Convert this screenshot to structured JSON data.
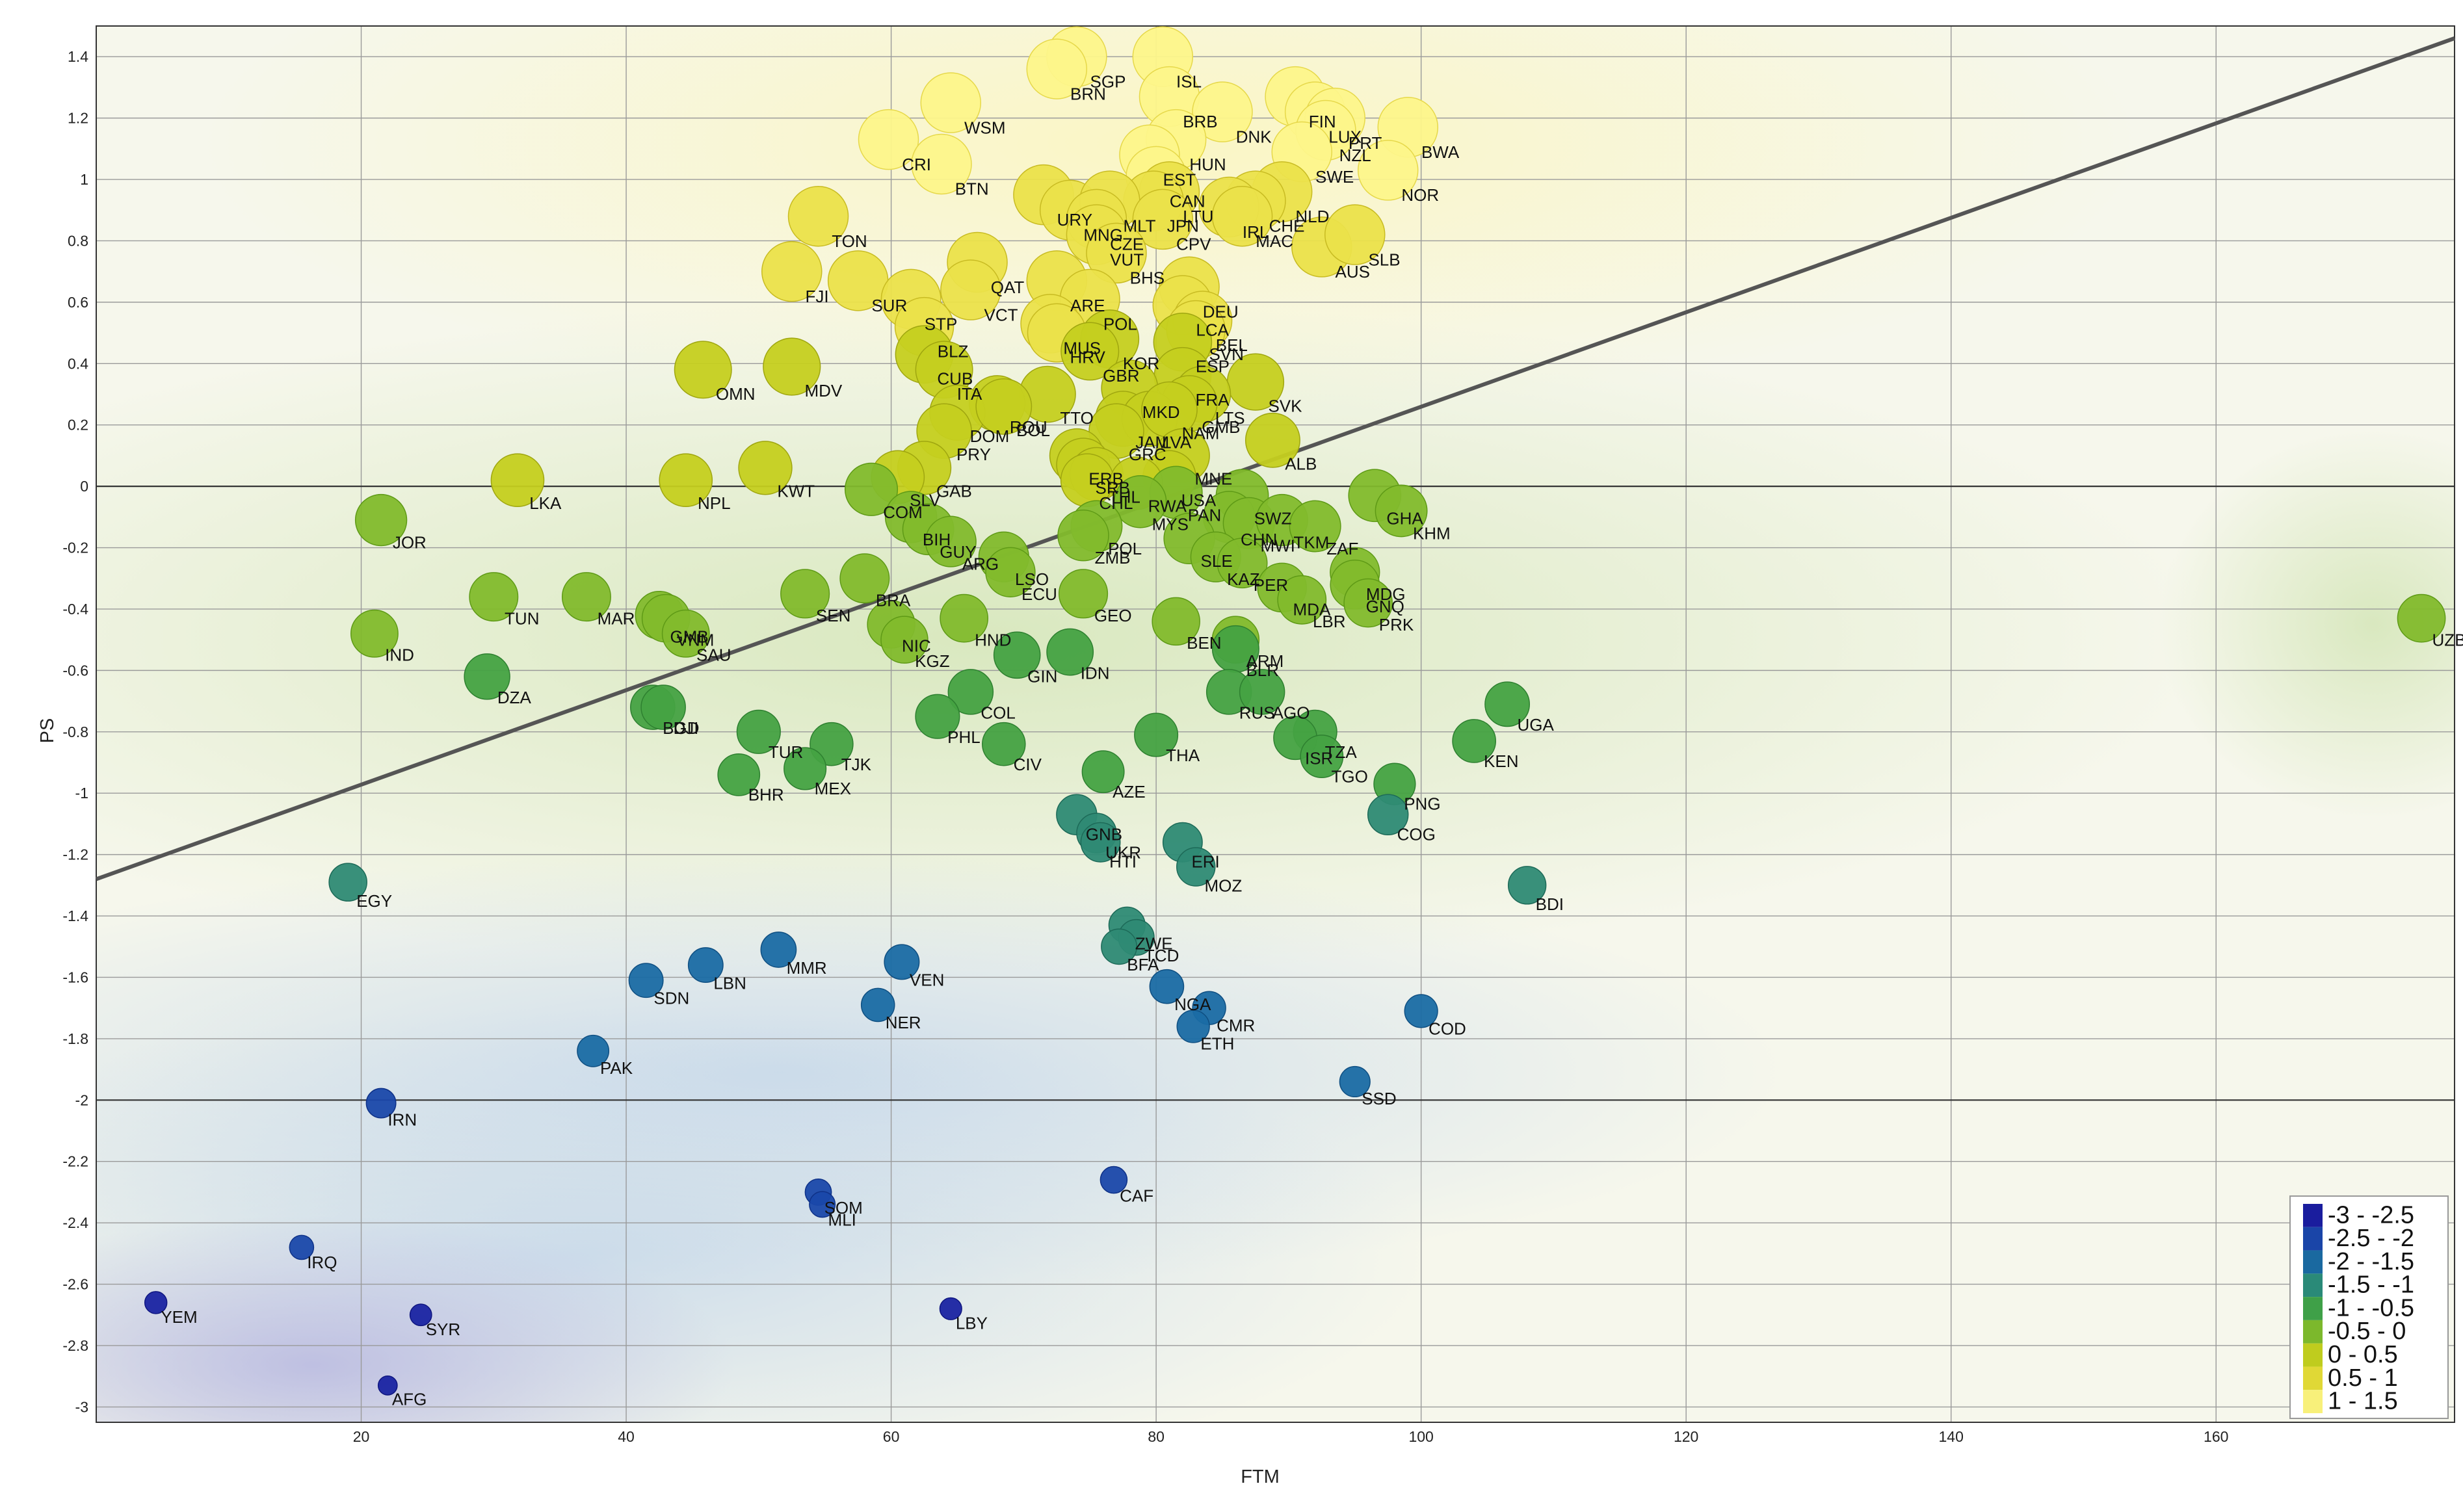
{
  "chart_data": {
    "type": "scatter",
    "title": "",
    "xlabel": "FTM",
    "ylabel": "PS",
    "xlim": [
      0,
      178
    ],
    "ylim": [
      -3.05,
      1.5
    ],
    "xticks": [
      20,
      40,
      60,
      80,
      100,
      120,
      140,
      160
    ],
    "yticks": [
      1.4,
      1.2,
      1,
      0.8,
      0.6,
      0.4,
      0.2,
      0,
      -0.2,
      -0.4,
      -0.6,
      -0.8,
      -1,
      -1.2,
      -1.4,
      -1.6,
      -1.8,
      -2,
      -2.2,
      -2.4,
      -2.6,
      -2.8,
      -3
    ],
    "grid": true,
    "trend_line": {
      "x": [
        0,
        178
      ],
      "y": [
        -1.28,
        1.46
      ]
    },
    "legend": {
      "placement": "bottom-right",
      "entries": [
        {
          "label": "-3 - -2.5",
          "color": "#1a1d9e"
        },
        {
          "label": "-2.5 - -2",
          "color": "#1a45a8"
        },
        {
          "label": "-2 - -1.5",
          "color": "#1a69a0"
        },
        {
          "label": "-1.5 - -1",
          "color": "#2a8a78"
        },
        {
          "label": "-1 - -0.5",
          "color": "#3fa048"
        },
        {
          "label": "-0.5 - 0",
          "color": "#7cb82c"
        },
        {
          "label": "0 - 0.5",
          "color": "#bfcc1e"
        },
        {
          "label": "0.5 - 1",
          "color": "#e0d836"
        },
        {
          "label": "1 - 1.5",
          "color": "#f8f07a"
        }
      ]
    },
    "points": [
      {
        "label": "SGP",
        "x": 74,
        "y": 1.4
      },
      {
        "label": "BRN",
        "x": 72.5,
        "y": 1.36
      },
      {
        "label": "ISL",
        "x": 80.5,
        "y": 1.4
      },
      {
        "label": "WSM",
        "x": 64.5,
        "y": 1.25
      },
      {
        "label": "CRI",
        "x": 59.8,
        "y": 1.13
      },
      {
        "label": "BTN",
        "x": 63.8,
        "y": 1.05
      },
      {
        "label": "BRB",
        "x": 81,
        "y": 1.27
      },
      {
        "label": "DNK",
        "x": 85,
        "y": 1.22
      },
      {
        "label": "FIN",
        "x": 90.5,
        "y": 1.27
      },
      {
        "label": "LUX",
        "x": 92,
        "y": 1.22
      },
      {
        "label": "PRT",
        "x": 93.5,
        "y": 1.2
      },
      {
        "label": "NZL",
        "x": 92.8,
        "y": 1.16
      },
      {
        "label": "BWA",
        "x": 99,
        "y": 1.17
      },
      {
        "label": "HUN",
        "x": 81.5,
        "y": 1.13
      },
      {
        "label": "EST",
        "x": 79.5,
        "y": 1.08
      },
      {
        "label": "SWE",
        "x": 91,
        "y": 1.09
      },
      {
        "label": "NOR",
        "x": 97.5,
        "y": 1.03
      },
      {
        "label": "CAN",
        "x": 80,
        "y": 1.01
      },
      {
        "label": "LTU",
        "x": 81,
        "y": 0.96
      },
      {
        "label": "JPN",
        "x": 79.8,
        "y": 0.93
      },
      {
        "label": "URY",
        "x": 71.5,
        "y": 0.95
      },
      {
        "label": "MNG",
        "x": 73.5,
        "y": 0.9
      },
      {
        "label": "MLT",
        "x": 76.5,
        "y": 0.93
      },
      {
        "label": "CZE",
        "x": 75.5,
        "y": 0.87
      },
      {
        "label": "CPV",
        "x": 80.5,
        "y": 0.87
      },
      {
        "label": "NLD",
        "x": 89.5,
        "y": 0.96
      },
      {
        "label": "CHE",
        "x": 87.5,
        "y": 0.93
      },
      {
        "label": "IRL",
        "x": 85.5,
        "y": 0.91
      },
      {
        "label": "MAC",
        "x": 86.5,
        "y": 0.88
      },
      {
        "label": "TON",
        "x": 54.5,
        "y": 0.88
      },
      {
        "label": "VUT",
        "x": 75.5,
        "y": 0.82
      },
      {
        "label": "AUS",
        "x": 92.5,
        "y": 0.78
      },
      {
        "label": "SLB",
        "x": 95,
        "y": 0.82
      },
      {
        "label": "BHS",
        "x": 77,
        "y": 0.76
      },
      {
        "label": "FJI",
        "x": 52.5,
        "y": 0.7
      },
      {
        "label": "SUR",
        "x": 57.5,
        "y": 0.67
      },
      {
        "label": "QAT",
        "x": 66.5,
        "y": 0.73
      },
      {
        "label": "VCT",
        "x": 66,
        "y": 0.64
      },
      {
        "label": "ARE",
        "x": 72.5,
        "y": 0.67
      },
      {
        "label": "POL",
        "x": 75,
        "y": 0.61
      },
      {
        "label": "STP",
        "x": 61.5,
        "y": 0.61
      },
      {
        "label": "DEU",
        "x": 82.5,
        "y": 0.65
      },
      {
        "label": "LCA",
        "x": 82,
        "y": 0.59
      },
      {
        "label": "BEL",
        "x": 83.5,
        "y": 0.54
      },
      {
        "label": "SVN",
        "x": 83,
        "y": 0.51
      },
      {
        "label": "MUS",
        "x": 72,
        "y": 0.53
      },
      {
        "label": "HRV",
        "x": 72.5,
        "y": 0.5
      },
      {
        "label": "KOR",
        "x": 76.5,
        "y": 0.48
      },
      {
        "label": "BLZ",
        "x": 62.5,
        "y": 0.52
      },
      {
        "label": "GBR",
        "x": 75,
        "y": 0.44
      },
      {
        "label": "ESP",
        "x": 82,
        "y": 0.47
      },
      {
        "label": "CUB",
        "x": 62.5,
        "y": 0.43
      },
      {
        "label": "ITA",
        "x": 64,
        "y": 0.38
      },
      {
        "label": "OMN",
        "x": 45.8,
        "y": 0.38
      },
      {
        "label": "MDV",
        "x": 52.5,
        "y": 0.39
      },
      {
        "label": "FRA",
        "x": 82,
        "y": 0.36
      },
      {
        "label": "SVK",
        "x": 87.5,
        "y": 0.34
      },
      {
        "label": "TTO",
        "x": 71.8,
        "y": 0.3
      },
      {
        "label": "LTS",
        "x": 83.5,
        "y": 0.3
      },
      {
        "label": "MKD",
        "x": 78,
        "y": 0.32
      },
      {
        "label": "GMB",
        "x": 82.5,
        "y": 0.27
      },
      {
        "label": "ROU",
        "x": 68,
        "y": 0.27
      },
      {
        "label": "DOM",
        "x": 65,
        "y": 0.24
      },
      {
        "label": "BOL",
        "x": 68.5,
        "y": 0.26
      },
      {
        "label": "JAM",
        "x": 77.5,
        "y": 0.22
      },
      {
        "label": "LVA",
        "x": 79.5,
        "y": 0.22
      },
      {
        "label": "NAM",
        "x": 81,
        "y": 0.25
      },
      {
        "label": "PRY",
        "x": 64,
        "y": 0.18
      },
      {
        "label": "GRC",
        "x": 77,
        "y": 0.18
      },
      {
        "label": "ALB",
        "x": 88.8,
        "y": 0.15
      },
      {
        "label": "MNE",
        "x": 82,
        "y": 0.1
      },
      {
        "label": "GAB",
        "x": 62.5,
        "y": 0.06
      },
      {
        "label": "ERB",
        "x": 74,
        "y": 0.1
      },
      {
        "label": "SRB",
        "x": 74.5,
        "y": 0.07
      },
      {
        "label": "THL",
        "x": 75.5,
        "y": 0.04
      },
      {
        "label": "CHL",
        "x": 74.8,
        "y": 0.02
      },
      {
        "label": "USA",
        "x": 81,
        "y": 0.03
      },
      {
        "label": "RWA",
        "x": 78.5,
        "y": 0.01
      },
      {
        "label": "PAN",
        "x": 81.5,
        "y": -0.02
      },
      {
        "label": "MYS",
        "x": 78.8,
        "y": -0.05
      },
      {
        "label": "LKA",
        "x": 31.8,
        "y": 0.02
      },
      {
        "label": "NPL",
        "x": 44.5,
        "y": 0.02
      },
      {
        "label": "KWT",
        "x": 50.5,
        "y": 0.06
      },
      {
        "label": "SLV",
        "x": 60.5,
        "y": 0.03
      },
      {
        "label": "COM",
        "x": 58.5,
        "y": -0.01
      },
      {
        "label": "BIH",
        "x": 61.5,
        "y": -0.1
      },
      {
        "label": "GUY",
        "x": 62.8,
        "y": -0.14
      },
      {
        "label": "ARG",
        "x": 64.5,
        "y": -0.18
      },
      {
        "label": "JOR",
        "x": 21.5,
        "y": -0.11
      },
      {
        "label": "GHA",
        "x": 96.5,
        "y": -0.03
      },
      {
        "label": "KHM",
        "x": 98.5,
        "y": -0.08
      },
      {
        "label": "SWZ",
        "x": 86.5,
        "y": -0.03
      },
      {
        "label": "CHN",
        "x": 85.5,
        "y": -0.1
      },
      {
        "label": "MWI",
        "x": 87,
        "y": -0.12
      },
      {
        "label": "TKM",
        "x": 89.5,
        "y": -0.11
      },
      {
        "label": "ZAF",
        "x": 92,
        "y": -0.13
      },
      {
        "label": "POL",
        "x": 75.5,
        "y": -0.13
      },
      {
        "label": "ZMB",
        "x": 74.5,
        "y": -0.16
      },
      {
        "label": "SLE",
        "x": 82.5,
        "y": -0.17
      },
      {
        "label": "KAZ",
        "x": 84.5,
        "y": -0.23
      },
      {
        "label": "PER",
        "x": 86.5,
        "y": -0.25
      },
      {
        "label": "LSO",
        "x": 68.5,
        "y": -0.23
      },
      {
        "label": "ECU",
        "x": 69,
        "y": -0.28
      },
      {
        "label": "BRA",
        "x": 58,
        "y": -0.3
      },
      {
        "label": "MDG",
        "x": 95,
        "y": -0.28
      },
      {
        "label": "GNQ",
        "x": 95,
        "y": -0.32
      },
      {
        "label": "PRK",
        "x": 96,
        "y": -0.38
      },
      {
        "label": "MDA",
        "x": 89.5,
        "y": -0.33
      },
      {
        "label": "LBR",
        "x": 91,
        "y": -0.37
      },
      {
        "label": "TUN",
        "x": 30,
        "y": -0.36
      },
      {
        "label": "MAR",
        "x": 37,
        "y": -0.36
      },
      {
        "label": "SEN",
        "x": 53.5,
        "y": -0.35
      },
      {
        "label": "GEO",
        "x": 74.5,
        "y": -0.35
      },
      {
        "label": "GMB",
        "x": 42.5,
        "y": -0.42
      },
      {
        "label": "VNM",
        "x": 43,
        "y": -0.43
      },
      {
        "label": "SAU",
        "x": 44.5,
        "y": -0.48
      },
      {
        "label": "HND",
        "x": 65.5,
        "y": -0.43
      },
      {
        "label": "BEN",
        "x": 81.5,
        "y": -0.44
      },
      {
        "label": "IND",
        "x": 21,
        "y": -0.48
      },
      {
        "label": "NIC",
        "x": 60,
        "y": -0.45
      },
      {
        "label": "KGZ",
        "x": 61,
        "y": -0.5
      },
      {
        "label": "ARM",
        "x": 86,
        "y": -0.5
      },
      {
        "label": "BLR",
        "x": 86,
        "y": -0.53
      },
      {
        "label": "UZB",
        "x": 175.5,
        "y": -0.43
      },
      {
        "label": "GIN",
        "x": 69.5,
        "y": -0.55
      },
      {
        "label": "IDN",
        "x": 73.5,
        "y": -0.54
      },
      {
        "label": "DZA",
        "x": 29.5,
        "y": -0.62
      },
      {
        "label": "COL",
        "x": 66,
        "y": -0.67
      },
      {
        "label": "RUS",
        "x": 85.5,
        "y": -0.67
      },
      {
        "label": "AGO",
        "x": 88,
        "y": -0.67
      },
      {
        "label": "UGA",
        "x": 106.5,
        "y": -0.71
      },
      {
        "label": "BGD",
        "x": 42,
        "y": -0.72
      },
      {
        "label": "DJI",
        "x": 42.8,
        "y": -0.72
      },
      {
        "label": "PHL",
        "x": 63.5,
        "y": -0.75
      },
      {
        "label": "TUR",
        "x": 50,
        "y": -0.8
      },
      {
        "label": "THA",
        "x": 80,
        "y": -0.81
      },
      {
        "label": "TJK",
        "x": 55.5,
        "y": -0.84
      },
      {
        "label": "CIV",
        "x": 68.5,
        "y": -0.84
      },
      {
        "label": "KEN",
        "x": 104,
        "y": -0.83
      },
      {
        "label": "TZA",
        "x": 92,
        "y": -0.8
      },
      {
        "label": "ISR",
        "x": 90.5,
        "y": -0.82
      },
      {
        "label": "TGO",
        "x": 92.5,
        "y": -0.88
      },
      {
        "label": "BHR",
        "x": 48.5,
        "y": -0.94
      },
      {
        "label": "MEX",
        "x": 53.5,
        "y": -0.92
      },
      {
        "label": "AZE",
        "x": 76,
        "y": -0.93
      },
      {
        "label": "PNG",
        "x": 98,
        "y": -0.97
      },
      {
        "label": "COG",
        "x": 97.5,
        "y": -1.07
      },
      {
        "label": "GNB",
        "x": 74,
        "y": -1.07
      },
      {
        "label": "UKR",
        "x": 75.5,
        "y": -1.13
      },
      {
        "label": "HTI",
        "x": 75.8,
        "y": -1.16
      },
      {
        "label": "ERI",
        "x": 82,
        "y": -1.16
      },
      {
        "label": "MOZ",
        "x": 83,
        "y": -1.24
      },
      {
        "label": "EGY",
        "x": 19,
        "y": -1.29
      },
      {
        "label": "BDI",
        "x": 108,
        "y": -1.3
      },
      {
        "label": "ZWE",
        "x": 77.8,
        "y": -1.43
      },
      {
        "label": "TCD",
        "x": 78.5,
        "y": -1.47
      },
      {
        "label": "BFA",
        "x": 77.2,
        "y": -1.5
      },
      {
        "label": "MMR",
        "x": 51.5,
        "y": -1.51
      },
      {
        "label": "LBN",
        "x": 46,
        "y": -1.56
      },
      {
        "label": "VEN",
        "x": 60.8,
        "y": -1.55
      },
      {
        "label": "SDN",
        "x": 41.5,
        "y": -1.61
      },
      {
        "label": "NGA",
        "x": 80.8,
        "y": -1.63
      },
      {
        "label": "NER",
        "x": 59,
        "y": -1.69
      },
      {
        "label": "CMR",
        "x": 84,
        "y": -1.7
      },
      {
        "label": "COD",
        "x": 100,
        "y": -1.71
      },
      {
        "label": "ETH",
        "x": 82.8,
        "y": -1.76
      },
      {
        "label": "PAK",
        "x": 37.5,
        "y": -1.84
      },
      {
        "label": "SSD",
        "x": 95,
        "y": -1.94
      },
      {
        "label": "IRN",
        "x": 21.5,
        "y": -2.01
      },
      {
        "label": "CAF",
        "x": 76.8,
        "y": -2.26
      },
      {
        "label": "SOM",
        "x": 54.5,
        "y": -2.3
      },
      {
        "label": "MLI",
        "x": 54.8,
        "y": -2.34
      },
      {
        "label": "IRQ",
        "x": 15.5,
        "y": -2.48
      },
      {
        "label": "YEM",
        "x": 4.5,
        "y": -2.66
      },
      {
        "label": "SYR",
        "x": 24.5,
        "y": -2.7
      },
      {
        "label": "LBY",
        "x": 64.5,
        "y": -2.68
      },
      {
        "label": "AFG",
        "x": 22,
        "y": -2.93
      }
    ]
  }
}
